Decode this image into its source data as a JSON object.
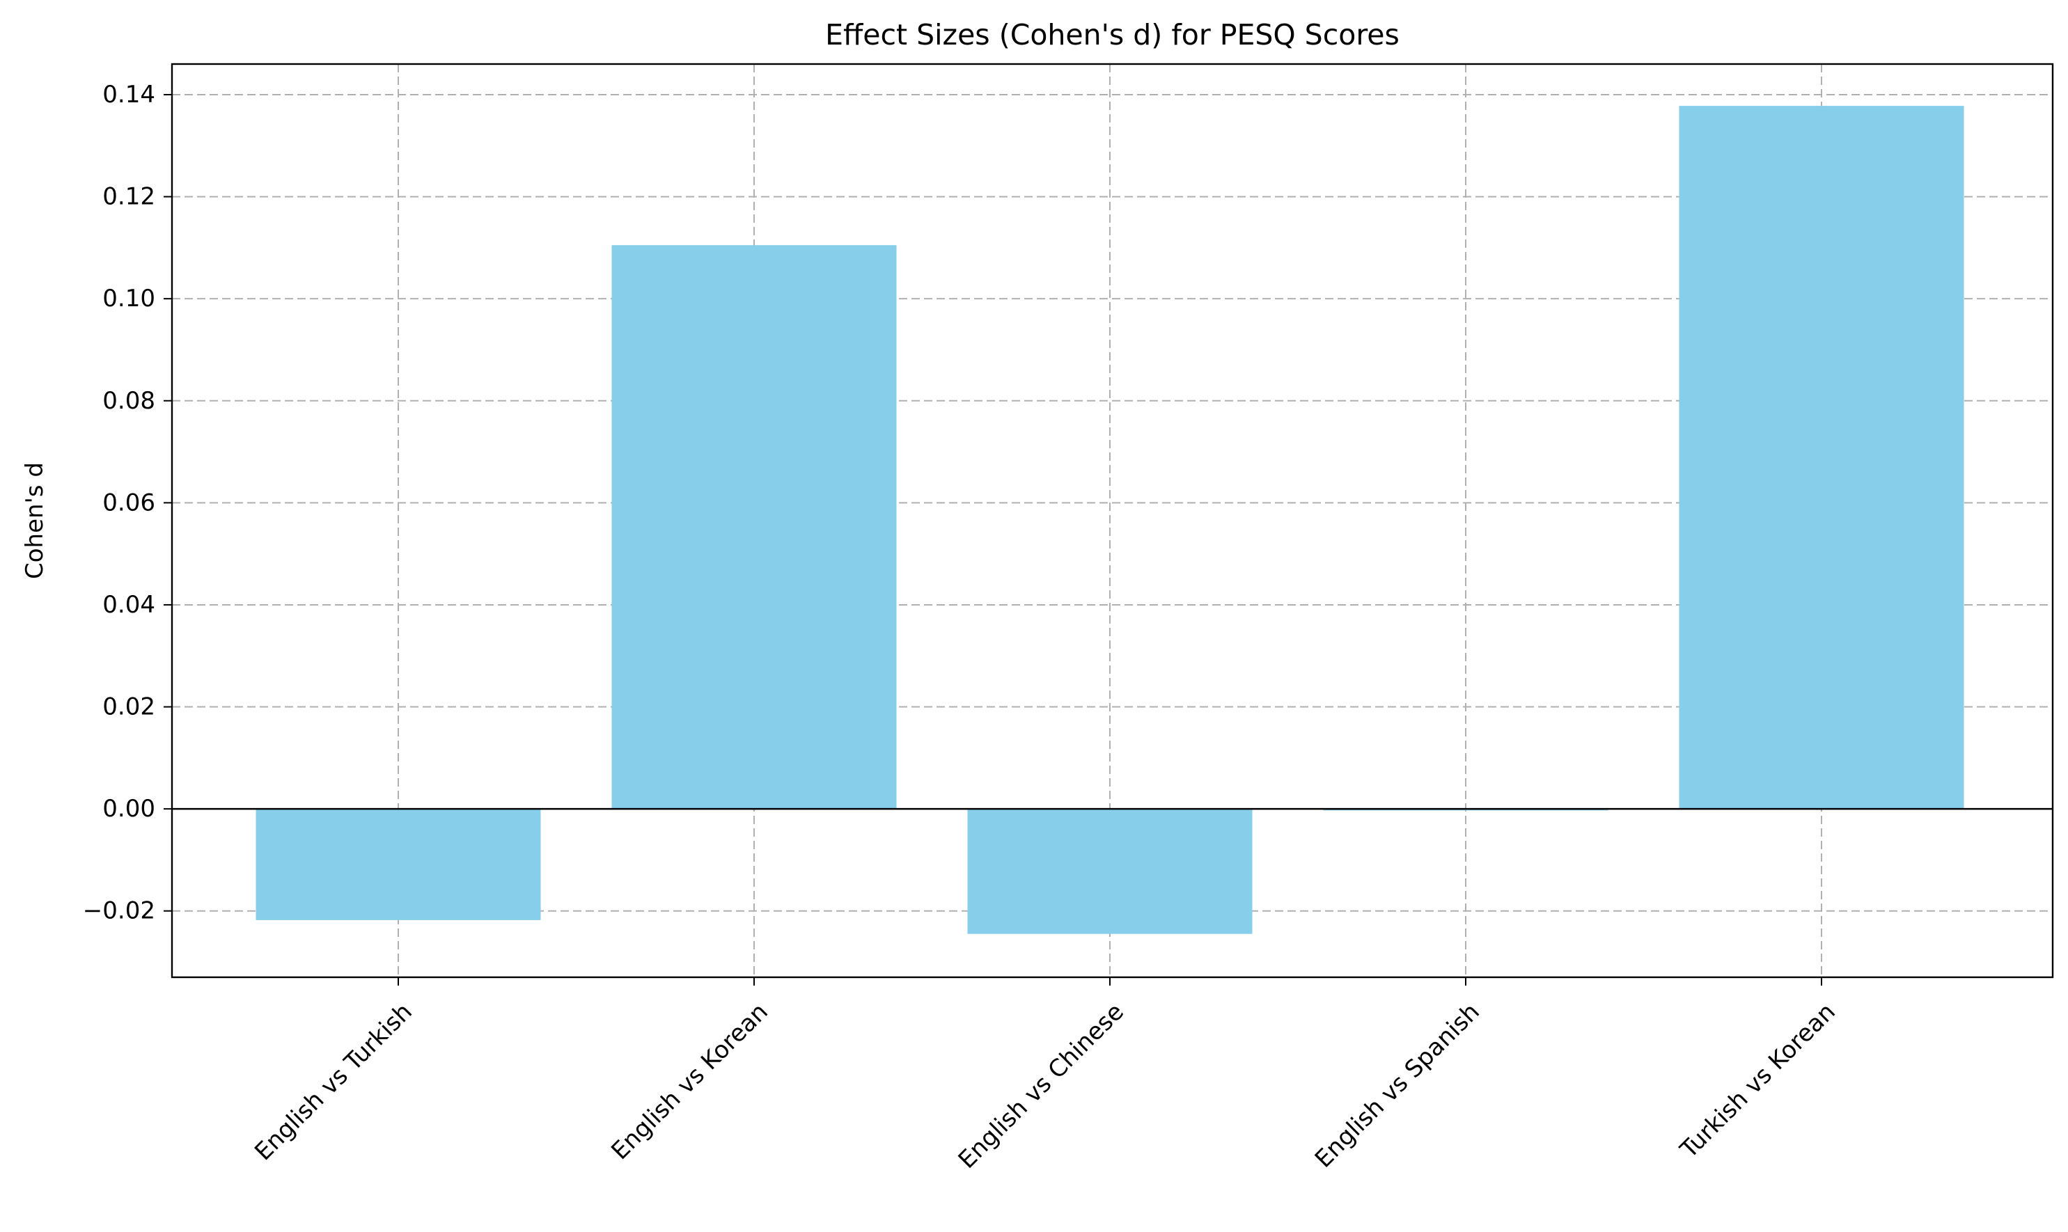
{
  "chart_data": {
    "type": "bar",
    "title": "Effect Sizes (Cohen's d) for PESQ Scores",
    "xlabel": "",
    "ylabel": "Cohen's d",
    "categories": [
      "English vs Turkish",
      "English vs Korean",
      "English vs Chinese",
      "English vs Spanish",
      "Turkish vs Korean"
    ],
    "values": [
      -0.0218,
      0.1105,
      -0.0245,
      -0.0003,
      0.1378
    ],
    "ylim": [
      -0.033,
      0.146
    ],
    "yticks": [
      -0.02,
      0.0,
      0.02,
      0.04,
      0.06,
      0.08,
      0.1,
      0.12,
      0.14
    ],
    "ytick_labels": [
      "−0.02",
      "0.00",
      "0.02",
      "0.04",
      "0.06",
      "0.08",
      "0.10",
      "0.12",
      "0.14"
    ],
    "grid": true,
    "zero_line": true,
    "colors": {
      "bar": "#87ceeb",
      "grid": "#b0b0b0",
      "axis": "#000000"
    }
  }
}
